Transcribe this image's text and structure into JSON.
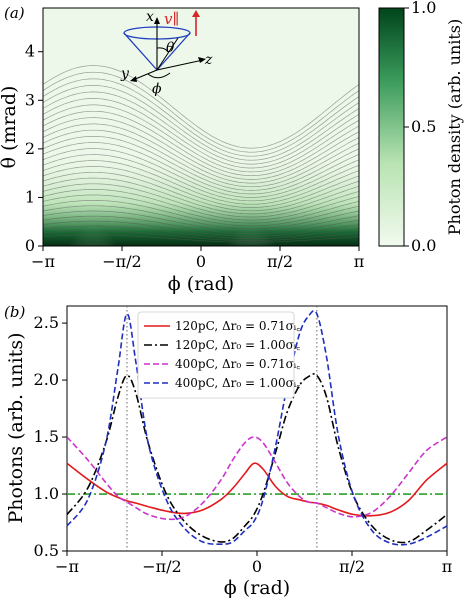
{
  "chart_data": [
    {
      "type": "heatmap",
      "panel_label": "(a)",
      "xlabel": "ϕ (rad)",
      "ylabel": "θ (mrad)",
      "xlim": [
        -3.14159,
        3.14159
      ],
      "ylim": [
        0,
        4.9
      ],
      "xticks": [
        -3.14159,
        -1.5708,
        0,
        1.5708,
        3.14159
      ],
      "xtick_labels": [
        "−π",
        "−π/2",
        "0",
        "π/2",
        "π"
      ],
      "yticks": [
        0,
        1,
        2,
        3,
        4
      ],
      "ytick_labels": [
        "0",
        "1",
        "2",
        "3",
        "4"
      ],
      "colorbar": {
        "label": "Photon density (arb. units)",
        "ticks": [
          0.0,
          0.5,
          1.0
        ],
        "tick_labels": [
          "0.0",
          "0.5",
          "1.0"
        ],
        "color_low": "#f2faef",
        "color_high": "#00441b"
      },
      "hotspots_phi": [
        -2.15,
        0.99
      ],
      "inset": {
        "axis_labels": [
          "x",
          "y",
          "z",
          "θ",
          "ϕ",
          "v∥"
        ],
        "v_color": "#d62728"
      }
    },
    {
      "type": "line",
      "panel_label": "(b)",
      "xlabel": "ϕ (rad)",
      "ylabel": "Photons (arb. units)",
      "xlim": [
        -3.14159,
        3.14159
      ],
      "ylim": [
        0.5,
        2.65
      ],
      "xticks": [
        -3.14159,
        -1.5708,
        0,
        1.5708,
        3.14159
      ],
      "xtick_labels": [
        "−π",
        "−π/2",
        "0",
        "π/2",
        "π"
      ],
      "yticks": [
        0.5,
        1.0,
        1.5,
        2.0,
        2.5
      ],
      "ytick_labels": [
        "0.5",
        "1.0",
        "1.5",
        "2.0",
        "2.5"
      ],
      "vlines_x": [
        -2.15,
        0.99
      ],
      "hline_y": 1.0,
      "hline_color": "#2ca02c",
      "x": [
        -3.14159,
        -2.8,
        -2.5,
        -2.3,
        -2.15,
        -2.0,
        -1.8,
        -1.5,
        -1.2,
        -0.9,
        -0.6,
        -0.4,
        -0.2,
        -0.05,
        0.1,
        0.3,
        0.5,
        0.7,
        0.85,
        0.99,
        1.15,
        1.35,
        1.6,
        1.9,
        2.2,
        2.5,
        2.8,
        3.14159
      ],
      "series": [
        {
          "name": "120pC, Δr₀ = 0.71σᵢ꜀",
          "color": "#e31a1c",
          "dash": "solid",
          "values": [
            1.27,
            1.13,
            1.02,
            0.97,
            0.94,
            0.92,
            0.89,
            0.85,
            0.83,
            0.86,
            0.95,
            1.05,
            1.18,
            1.27,
            1.22,
            1.07,
            0.98,
            0.95,
            0.93,
            0.92,
            0.9,
            0.86,
            0.82,
            0.81,
            0.84,
            0.94,
            1.12,
            1.27
          ]
        },
        {
          "name": "120pC, Δr₀ = 1.00σᵢ꜀",
          "color": "#000000",
          "dash": "dashdot",
          "values": [
            0.82,
            1.05,
            1.45,
            1.85,
            2.04,
            1.88,
            1.45,
            1.0,
            0.76,
            0.63,
            0.58,
            0.61,
            0.72,
            0.82,
            1.0,
            1.35,
            1.72,
            1.95,
            2.03,
            2.04,
            1.85,
            1.4,
            0.98,
            0.72,
            0.6,
            0.58,
            0.68,
            0.82
          ]
        },
        {
          "name": "400pC, Δr₀ = 0.71σᵢ꜀",
          "color": "#cc33cc",
          "dash": "dashed",
          "values": [
            1.5,
            1.3,
            1.1,
            0.98,
            0.93,
            0.88,
            0.82,
            0.78,
            0.8,
            0.92,
            1.12,
            1.3,
            1.45,
            1.5,
            1.45,
            1.28,
            1.1,
            0.98,
            0.93,
            0.92,
            0.88,
            0.83,
            0.8,
            0.84,
            0.98,
            1.18,
            1.38,
            1.5
          ]
        },
        {
          "name": "400pC, Δr₀ = 1.00σᵢ꜀",
          "color": "#1f2fbf",
          "dash": "dashed",
          "values": [
            0.72,
            0.95,
            1.45,
            2.1,
            2.58,
            2.15,
            1.45,
            0.95,
            0.7,
            0.58,
            0.56,
            0.58,
            0.68,
            0.76,
            0.95,
            1.4,
            1.95,
            2.4,
            2.56,
            2.58,
            2.2,
            1.5,
            0.98,
            0.68,
            0.57,
            0.56,
            0.62,
            0.72
          ]
        }
      ]
    }
  ]
}
